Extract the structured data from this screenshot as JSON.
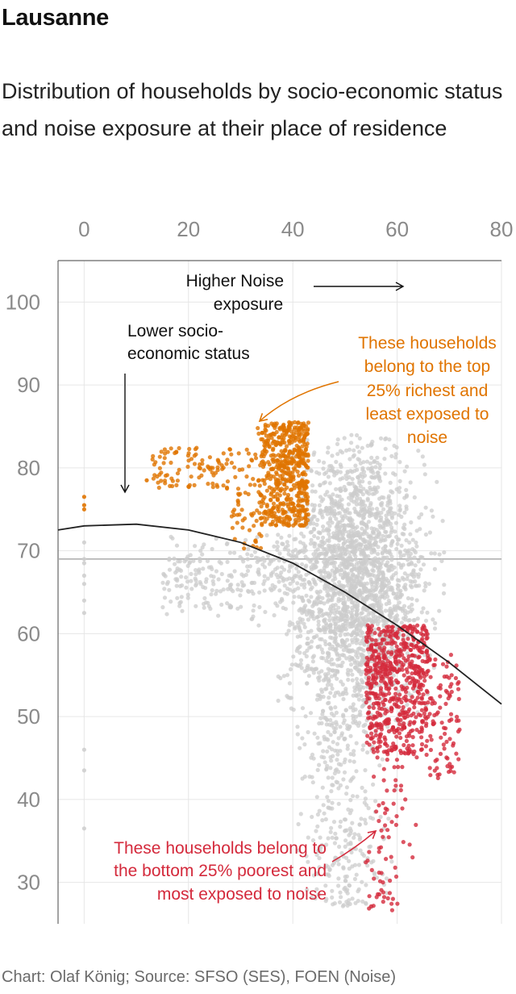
{
  "header": {
    "title": "Lausanne",
    "subtitle": "Distribution of households by socio-economic status and noise exposure at their place of residence"
  },
  "footer": {
    "source": "Chart: Olaf König; Source: SFSO (SES), FOEN (Noise)"
  },
  "colors": {
    "background_points": "#cccccc",
    "richest": "#e07400",
    "poorest": "#d42a3c",
    "curve": "#222222",
    "grid": "#e6e6e6"
  },
  "annotations": {
    "noise_1": "Higher Noise",
    "noise_2": "exposure",
    "ses_1": "Lower socio-",
    "ses_2": "economic status",
    "rich_1": "These households",
    "rich_2": "belong to the top",
    "rich_3": "25% richest and",
    "rich_4": "least exposed to",
    "rich_5": "noise",
    "poor_1": "These households belong to",
    "poor_2": "the bottom 25% poorest and",
    "poor_3": "most exposed to noise"
  },
  "chart_data": {
    "type": "scatter",
    "x_ticks": [
      "0",
      "20",
      "40",
      "60",
      "80"
    ],
    "y_ticks": [
      "100",
      "90",
      "80",
      "70",
      "60",
      "50",
      "40",
      "30"
    ],
    "xlim": [
      -5,
      80
    ],
    "ylim": [
      25,
      105
    ],
    "x_axis_position": "top",
    "grid": true,
    "reference_line_y": 69,
    "fit_curve": {
      "x": [
        -5,
        0,
        10,
        20,
        30,
        40,
        50,
        60,
        70,
        80
      ],
      "y": [
        72.5,
        73,
        73.2,
        72.5,
        71,
        68.5,
        65,
        61,
        56.5,
        51.5
      ]
    },
    "groups": [
      {
        "label": "These households belong to the top 25% richest and least exposed to noise",
        "color": "#e07400",
        "cluster": {
          "x": [
            33,
            43
          ],
          "y": [
            73,
            85.5
          ]
        },
        "tail": {
          "x": [
            13,
            33
          ],
          "y": [
            77.5,
            82.5
          ]
        },
        "outliers": [
          [
            0,
            75.5
          ],
          [
            0,
            76.5
          ],
          [
            0,
            75
          ],
          [
            12,
            78.5
          ]
        ]
      },
      {
        "label": "These households belong to the bottom 25% poorest and most exposed to noise",
        "color": "#d42a3c",
        "cluster": {
          "x": [
            54,
            66
          ],
          "y": [
            45,
            61
          ]
        },
        "tail": {
          "x": [
            54,
            63
          ],
          "y": [
            26,
            45
          ]
        },
        "side": {
          "x": [
            66,
            72
          ],
          "y": [
            42,
            58
          ]
        }
      }
    ],
    "background": {
      "label": "all households",
      "core": {
        "x": [
          37,
          69
        ],
        "y": [
          48,
          84
        ]
      },
      "left_band": {
        "x": [
          15,
          42
        ],
        "y": [
          60,
          72
        ]
      },
      "lower_tail": {
        "x": [
          40,
          60
        ],
        "y": [
          27,
          50
        ]
      },
      "x0_column": [
        [
          0,
          71
        ],
        [
          0,
          69
        ],
        [
          0,
          68.5
        ],
        [
          0,
          67
        ],
        [
          0,
          66
        ],
        [
          0,
          64
        ],
        [
          0,
          62.5
        ],
        [
          0,
          46
        ],
        [
          0,
          43.5
        ],
        [
          0,
          36.5
        ]
      ]
    }
  }
}
